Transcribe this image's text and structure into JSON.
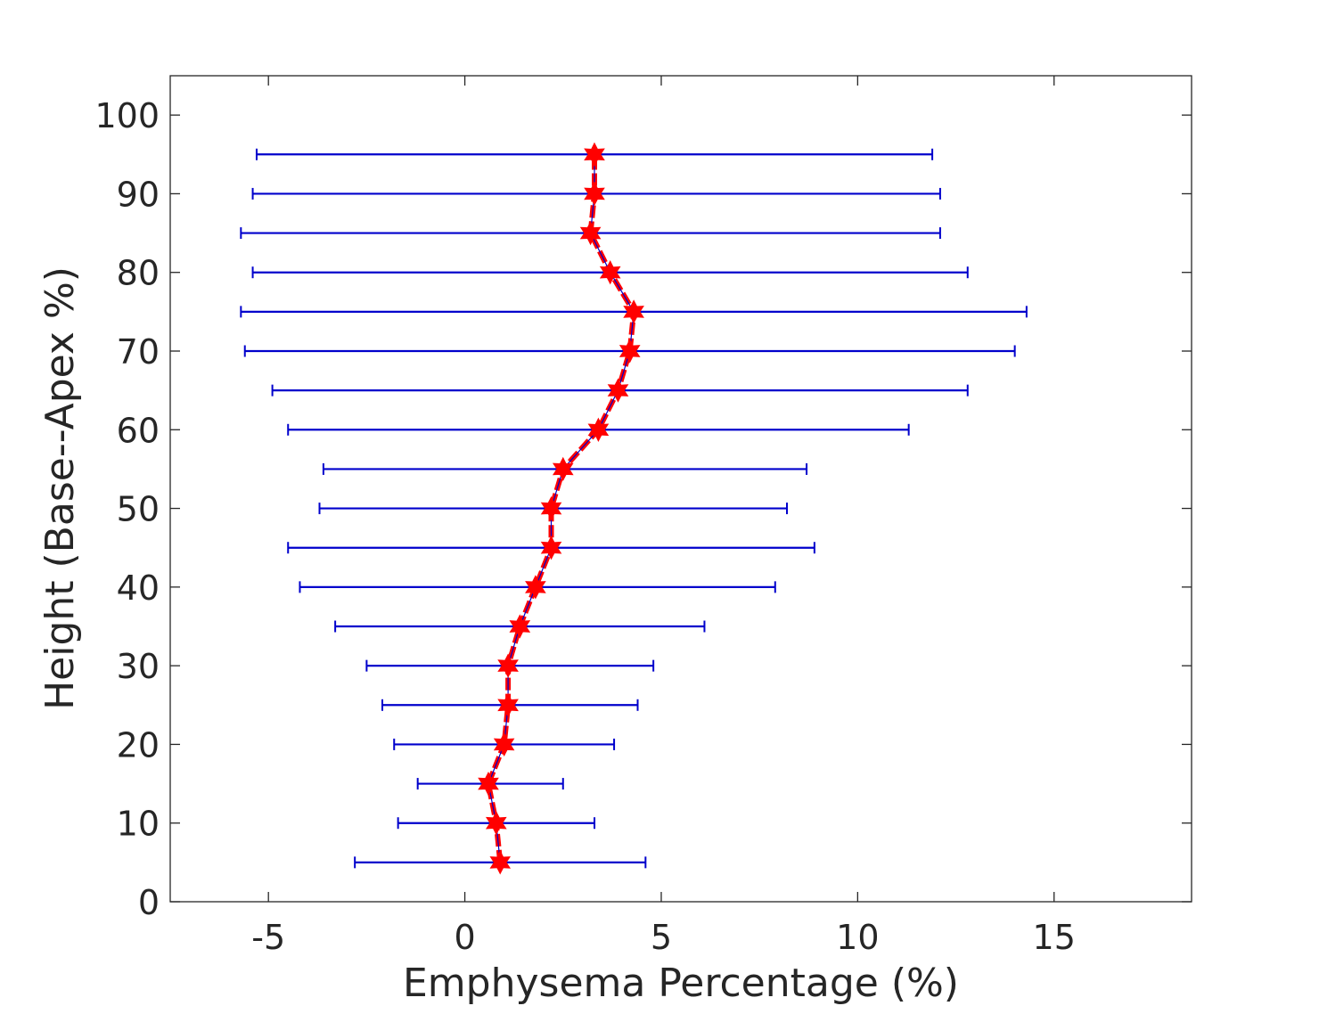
{
  "chart_data": {
    "type": "errorbar",
    "xlabel": "Emphysema Percentage (%)",
    "ylabel": "Height (Base--Apex %)",
    "xlim": [
      -7.5,
      18.5
    ],
    "ylim": [
      0,
      105
    ],
    "x_ticks": [
      -5,
      0,
      5,
      10,
      15
    ],
    "y_ticks": [
      0,
      10,
      20,
      30,
      40,
      50,
      60,
      70,
      80,
      90,
      100
    ],
    "x_tick_labels": [
      "-5",
      "0",
      "5",
      "10",
      "15"
    ],
    "y_tick_labels": [
      "0",
      "10",
      "20",
      "30",
      "40",
      "50",
      "60",
      "70",
      "80",
      "90",
      "100"
    ],
    "grid": false,
    "series": [
      {
        "y": [
          5,
          10,
          15,
          20,
          25,
          30,
          35,
          40,
          45,
          50,
          55,
          60,
          65,
          70,
          75,
          80,
          85,
          90,
          95
        ],
        "mean": [
          0.9,
          0.8,
          0.6,
          1.0,
          1.1,
          1.1,
          1.4,
          1.8,
          2.2,
          2.2,
          2.5,
          3.4,
          3.9,
          4.2,
          4.3,
          3.7,
          3.2,
          3.3,
          3.3
        ],
        "lower": [
          -2.8,
          -1.7,
          -1.2,
          -1.8,
          -2.1,
          -2.5,
          -3.3,
          -4.2,
          -4.5,
          -3.7,
          -3.6,
          -4.5,
          -4.9,
          -5.6,
          -5.7,
          -5.4,
          -5.7,
          -5.4,
          -5.3
        ],
        "upper": [
          4.6,
          3.3,
          2.5,
          3.8,
          4.4,
          4.8,
          6.1,
          7.9,
          8.9,
          8.2,
          8.7,
          11.3,
          12.8,
          14.0,
          14.3,
          12.8,
          12.1,
          12.1,
          11.9
        ],
        "line_color": "#ff0000",
        "marker_color": "#ff0000",
        "errorbar_color": "#0000cc",
        "marker": "hexagram"
      }
    ]
  }
}
